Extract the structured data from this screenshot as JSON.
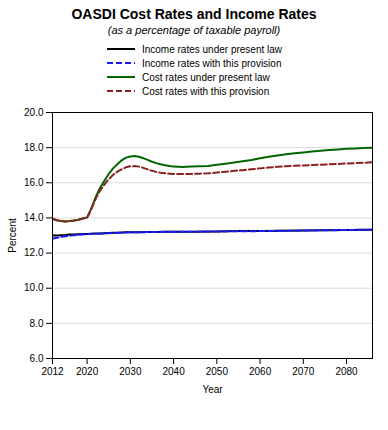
{
  "chart_data": {
    "type": "line",
    "title": "OASDI Cost Rates and Income Rates",
    "subtitle": "(as a percentage of taxable payroll)",
    "xlabel": "Year",
    "ylabel": "Percent",
    "xlim": [
      2012,
      2086
    ],
    "xticks": [
      2012,
      2020,
      2030,
      2040,
      2050,
      2060,
      2070,
      2080
    ],
    "ylim": [
      6.0,
      20.0
    ],
    "yticks": [
      {
        "value": 6.0,
        "label": "6.0"
      },
      {
        "value": 8.0,
        "label": "8.0"
      },
      {
        "value": 10.0,
        "label": "10.0"
      },
      {
        "value": 12.0,
        "label": "12.0"
      },
      {
        "value": 14.0,
        "label": "14.0"
      },
      {
        "value": 16.0,
        "label": "16.0"
      },
      {
        "value": 18.0,
        "label": "18.0"
      },
      {
        "value": 20.0,
        "label": "20.0"
      }
    ],
    "grid": "y",
    "legend": "top",
    "series": [
      {
        "name": "Income rates under present law",
        "color": "#000000",
        "line_style": "solid",
        "x": [
          2012,
          2013,
          2014,
          2015,
          2016,
          2017,
          2018,
          2019,
          2020,
          2021,
          2022,
          2023,
          2024,
          2025,
          2026,
          2027,
          2028,
          2029,
          2030,
          2032,
          2034,
          2036,
          2038,
          2040,
          2045,
          2050,
          2055,
          2060,
          2065,
          2070,
          2075,
          2080,
          2085,
          2086
        ],
        "values": [
          13.0,
          13.0,
          13.02,
          13.03,
          13.05,
          13.06,
          13.07,
          13.08,
          13.09,
          13.1,
          13.11,
          13.12,
          13.13,
          13.14,
          13.15,
          13.16,
          13.17,
          13.18,
          13.18,
          13.19,
          13.2,
          13.2,
          13.21,
          13.21,
          13.22,
          13.23,
          13.25,
          13.26,
          13.27,
          13.28,
          13.3,
          13.31,
          13.33,
          13.33
        ]
      },
      {
        "name": "Income rates with this provision",
        "color": "#1a1aff",
        "line_style": "dashed",
        "x": [
          2012,
          2013,
          2014,
          2015,
          2016,
          2017,
          2018,
          2019,
          2020,
          2022,
          2024,
          2026,
          2028,
          2030,
          2035,
          2040,
          2045,
          2050,
          2055,
          2060,
          2065,
          2070,
          2075,
          2080,
          2085,
          2086
        ],
        "values": [
          12.82,
          12.87,
          12.92,
          12.96,
          12.99,
          13.02,
          13.04,
          13.06,
          13.08,
          13.1,
          13.12,
          13.14,
          13.16,
          13.18,
          13.2,
          13.21,
          13.22,
          13.23,
          13.24,
          13.25,
          13.27,
          13.28,
          13.3,
          13.31,
          13.33,
          13.33
        ]
      },
      {
        "name": "Cost rates under present law",
        "color": "#006600",
        "line_style": "solid",
        "x": [
          2012,
          2013,
          2014,
          2015,
          2016,
          2017,
          2018,
          2019,
          2020,
          2021,
          2022,
          2023,
          2024,
          2025,
          2026,
          2027,
          2028,
          2029,
          2030,
          2031,
          2032,
          2033,
          2034,
          2035,
          2036,
          2037,
          2038,
          2039,
          2040,
          2042,
          2044,
          2046,
          2048,
          2050,
          2052,
          2054,
          2056,
          2058,
          2060,
          2062,
          2064,
          2066,
          2068,
          2070,
          2072,
          2074,
          2076,
          2078,
          2080,
          2082,
          2084,
          2086
        ],
        "values": [
          13.95,
          13.87,
          13.82,
          13.8,
          13.82,
          13.85,
          13.9,
          13.97,
          14.02,
          14.55,
          15.2,
          15.72,
          16.12,
          16.5,
          16.82,
          17.05,
          17.28,
          17.43,
          17.5,
          17.52,
          17.48,
          17.4,
          17.3,
          17.2,
          17.12,
          17.05,
          17.0,
          16.96,
          16.92,
          16.9,
          16.92,
          16.94,
          16.96,
          17.02,
          17.08,
          17.15,
          17.22,
          17.3,
          17.4,
          17.48,
          17.55,
          17.62,
          17.68,
          17.73,
          17.78,
          17.82,
          17.86,
          17.9,
          17.93,
          17.95,
          17.98,
          18.0
        ]
      },
      {
        "name": "Cost rates with this provision",
        "color": "#8b2020",
        "line_style": "dashed",
        "x": [
          2012,
          2013,
          2014,
          2015,
          2016,
          2017,
          2018,
          2019,
          2020,
          2021,
          2022,
          2023,
          2024,
          2025,
          2026,
          2027,
          2028,
          2029,
          2030,
          2031,
          2032,
          2033,
          2034,
          2035,
          2036,
          2037,
          2038,
          2039,
          2040,
          2042,
          2044,
          2046,
          2048,
          2050,
          2052,
          2054,
          2056,
          2058,
          2060,
          2062,
          2064,
          2066,
          2068,
          2070,
          2072,
          2074,
          2076,
          2078,
          2080,
          2082,
          2084,
          2086
        ],
        "values": [
          13.95,
          13.87,
          13.82,
          13.8,
          13.82,
          13.85,
          13.9,
          13.97,
          14.02,
          14.5,
          15.1,
          15.55,
          15.9,
          16.2,
          16.45,
          16.63,
          16.77,
          16.88,
          16.94,
          16.95,
          16.92,
          16.85,
          16.76,
          16.68,
          16.62,
          16.57,
          16.54,
          16.52,
          16.5,
          16.5,
          16.5,
          16.52,
          16.54,
          16.58,
          16.63,
          16.68,
          16.72,
          16.77,
          16.82,
          16.87,
          16.91,
          16.94,
          16.97,
          16.99,
          17.01,
          17.03,
          17.05,
          17.07,
          17.1,
          17.12,
          17.14,
          17.17
        ]
      }
    ]
  }
}
